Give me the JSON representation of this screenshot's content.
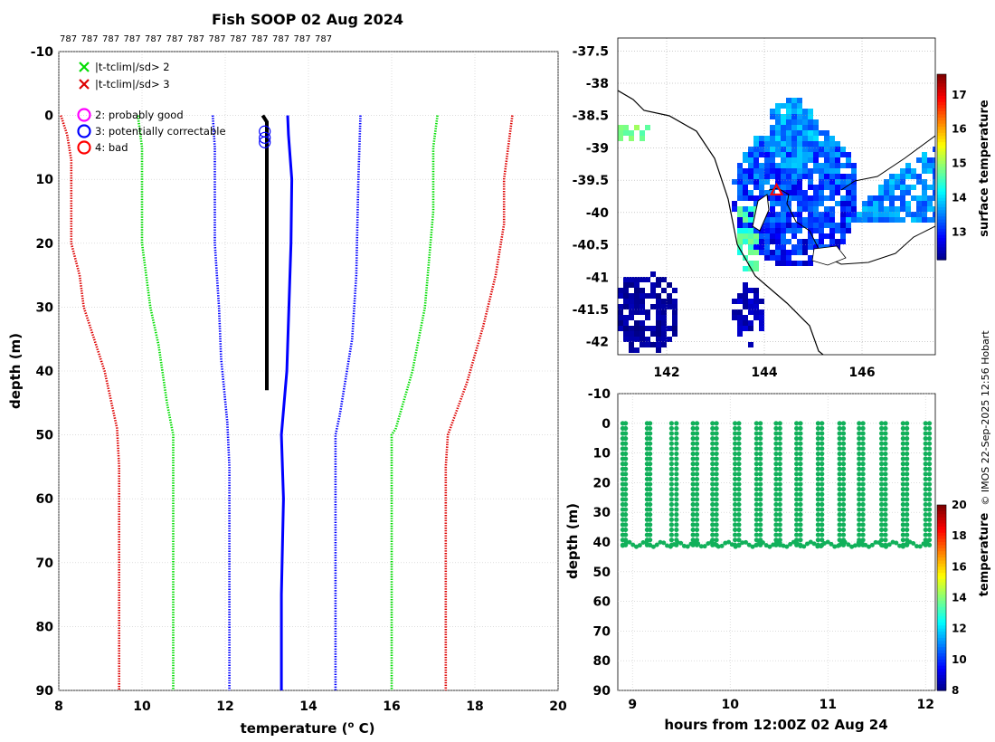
{
  "title": "Fish SOOP 02 Aug 2024",
  "station_ids": [
    "787",
    "787",
    "787",
    "787",
    "787",
    "787",
    "787",
    "787",
    "787",
    "787",
    "787",
    "787",
    "787"
  ],
  "credit": "© IMOS 22-Sep-2025 12:56 Hobart",
  "colors": {
    "clim_sd1": "#0000ff",
    "clim_sd2": "#00ee00",
    "clim_sd3": "#dd0000",
    "profile_obs": "#000000",
    "profile_clim": "#0000ff",
    "flag_good": "#ff00ff",
    "flag_correctable": "#0000ff",
    "flag_bad": "#ff0000",
    "timeseries_points": "#11b05a"
  },
  "chart_data": [
    {
      "type": "line",
      "name": "profile",
      "title": "Fish SOOP 02 Aug 2024",
      "xlabel": "temperature (",
      "xlabel_super": "o",
      "xlabel_unit": " C)",
      "ylabel": "depth (m)",
      "xlim": [
        8,
        20
      ],
      "ylim": [
        -10,
        90
      ],
      "y_reversed": true,
      "xticks": [
        8,
        10,
        12,
        14,
        16,
        18,
        20
      ],
      "yticks": [
        -10,
        0,
        10,
        20,
        30,
        40,
        50,
        60,
        70,
        80,
        90
      ],
      "grid": true,
      "legend": {
        "location": "top-left",
        "entries": [
          {
            "label": "|t-tclim|/sd> 2",
            "marker": "x",
            "color": "#00dd00"
          },
          {
            "label": "|t-tclim|/sd> 3",
            "marker": "x",
            "color": "#dd0000"
          },
          {
            "label": "2: probably good",
            "marker": "o",
            "color": "#ff00ff"
          },
          {
            "label": "3: potentially correctable",
            "marker": "o",
            "color": "#0000ff"
          },
          {
            "label": "4: bad",
            "marker": "o",
            "color": "#ff0000"
          }
        ]
      },
      "series": [
        {
          "name": "clim -3sd",
          "style": "dotted",
          "color": "#dd0000",
          "points": [
            [
              8.05,
              0
            ],
            [
              8.2,
              3
            ],
            [
              8.3,
              7
            ],
            [
              8.3,
              12
            ],
            [
              8.3,
              20
            ],
            [
              8.5,
              25
            ],
            [
              8.6,
              30
            ],
            [
              8.8,
              34
            ],
            [
              9.1,
              40
            ],
            [
              9.4,
              49
            ],
            [
              9.45,
              55
            ],
            [
              9.45,
              90
            ]
          ]
        },
        {
          "name": "clim -2sd",
          "style": "dotted",
          "color": "#00dd00",
          "points": [
            [
              9.9,
              0
            ],
            [
              10.0,
              5
            ],
            [
              10.0,
              20
            ],
            [
              10.2,
              30
            ],
            [
              10.4,
              36
            ],
            [
              10.6,
              45
            ],
            [
              10.75,
              50
            ],
            [
              10.75,
              90
            ]
          ]
        },
        {
          "name": "clim -1sd",
          "style": "dotted",
          "color": "#0000ff",
          "points": [
            [
              11.7,
              0
            ],
            [
              11.75,
              5
            ],
            [
              11.75,
              20
            ],
            [
              11.85,
              30
            ],
            [
              11.9,
              38
            ],
            [
              12.05,
              48
            ],
            [
              12.1,
              55
            ],
            [
              12.1,
              90
            ]
          ]
        },
        {
          "name": "clim mean",
          "style": "solid",
          "color": "#0000ff",
          "points": [
            [
              13.5,
              0
            ],
            [
              13.52,
              3
            ],
            [
              13.6,
              10
            ],
            [
              13.58,
              20
            ],
            [
              13.48,
              40
            ],
            [
              13.35,
              50
            ],
            [
              13.4,
              60
            ],
            [
              13.35,
              75
            ],
            [
              13.35,
              90
            ]
          ]
        },
        {
          "name": "clim +1sd",
          "style": "dotted",
          "color": "#0000ff",
          "points": [
            [
              15.25,
              0
            ],
            [
              15.2,
              10
            ],
            [
              15.15,
              25
            ],
            [
              15.05,
              35
            ],
            [
              14.75,
              47
            ],
            [
              14.65,
              50
            ],
            [
              14.65,
              90
            ]
          ]
        },
        {
          "name": "clim +2sd",
          "style": "dotted",
          "color": "#00dd00",
          "points": [
            [
              17.1,
              0
            ],
            [
              17.0,
              5
            ],
            [
              17.0,
              15
            ],
            [
              16.8,
              30
            ],
            [
              16.5,
              40
            ],
            [
              16.1,
              49
            ],
            [
              16.0,
              50
            ],
            [
              16.0,
              90
            ]
          ]
        },
        {
          "name": "clim +3sd",
          "style": "dotted",
          "color": "#dd0000",
          "points": [
            [
              18.9,
              0
            ],
            [
              18.8,
              5
            ],
            [
              18.7,
              10
            ],
            [
              18.7,
              17
            ],
            [
              18.5,
              25
            ],
            [
              18.2,
              33
            ],
            [
              17.8,
              42
            ],
            [
              17.35,
              50
            ],
            [
              17.3,
              55
            ],
            [
              17.3,
              90
            ]
          ]
        },
        {
          "name": "observed",
          "style": "solid-thick",
          "color": "#000000",
          "points": [
            [
              12.9,
              0
            ],
            [
              13.0,
              1
            ],
            [
              13.0,
              5
            ],
            [
              13.0,
              20
            ],
            [
              13.0,
              30
            ],
            [
              13.0,
              43
            ]
          ]
        }
      ],
      "flag_markers": [
        {
          "x": 12.95,
          "y": 2.5,
          "flag": "3: potentially correctable"
        },
        {
          "x": 12.95,
          "y": 3.5,
          "flag": "3: potentially correctable"
        },
        {
          "x": 12.95,
          "y": 4.2,
          "flag": "3: potentially correctable"
        }
      ]
    },
    {
      "type": "heatmap",
      "name": "surface-temperature-map",
      "xlim": [
        141,
        147.5
      ],
      "ylim": [
        -42.2,
        -37.3
      ],
      "xticks": [
        142,
        144,
        146
      ],
      "yticks": [
        -37.5,
        -38,
        -38.5,
        -39,
        -39.5,
        -40,
        -40.5,
        -41,
        -41.5,
        -42
      ],
      "colorbar_label": "surface temperature",
      "colorbar_range": [
        12.2,
        17.6
      ],
      "colorbar_ticks": [
        13,
        14,
        15,
        16,
        17
      ],
      "grid": true,
      "marker": {
        "lon": 144.25,
        "lat": -39.65,
        "shape": "triangle",
        "color": "#ff0000"
      }
    },
    {
      "type": "scatter",
      "name": "timeseries",
      "xlabel": "hours from 12:00Z 02 Aug 24",
      "ylabel": "depth (m)",
      "xlim": [
        8.85,
        12.1
      ],
      "ylim": [
        -10,
        90
      ],
      "y_reversed": true,
      "xticks": [
        9,
        10,
        11,
        12
      ],
      "yticks": [
        -10,
        0,
        10,
        20,
        30,
        40,
        50,
        60,
        70,
        80,
        90
      ],
      "grid": true,
      "colorbar_label": "temperature",
      "colorbar_range": [
        8,
        20
      ],
      "colorbar_ticks": [
        8,
        10,
        12,
        14,
        16,
        18,
        20
      ],
      "casts": [
        {
          "start": 8.9,
          "end": 8.93,
          "bottom": 41
        },
        {
          "start": 9.15,
          "end": 9.18,
          "bottom": 41
        },
        {
          "start": 9.4,
          "end": 9.45,
          "bottom": 41
        },
        {
          "start": 9.62,
          "end": 9.66,
          "bottom": 41
        },
        {
          "start": 9.82,
          "end": 9.86,
          "bottom": 41
        },
        {
          "start": 10.05,
          "end": 10.09,
          "bottom": 41
        },
        {
          "start": 10.27,
          "end": 10.31,
          "bottom": 41
        },
        {
          "start": 10.47,
          "end": 10.51,
          "bottom": 41
        },
        {
          "start": 10.68,
          "end": 10.72,
          "bottom": 41
        },
        {
          "start": 10.9,
          "end": 10.94,
          "bottom": 41
        },
        {
          "start": 11.12,
          "end": 11.16,
          "bottom": 41
        },
        {
          "start": 11.32,
          "end": 11.36,
          "bottom": 41
        },
        {
          "start": 11.55,
          "end": 11.59,
          "bottom": 41
        },
        {
          "start": 11.77,
          "end": 11.81,
          "bottom": 41
        },
        {
          "start": 12.0,
          "end": 12.04,
          "bottom": 41
        }
      ],
      "value_approx": 13
    }
  ]
}
